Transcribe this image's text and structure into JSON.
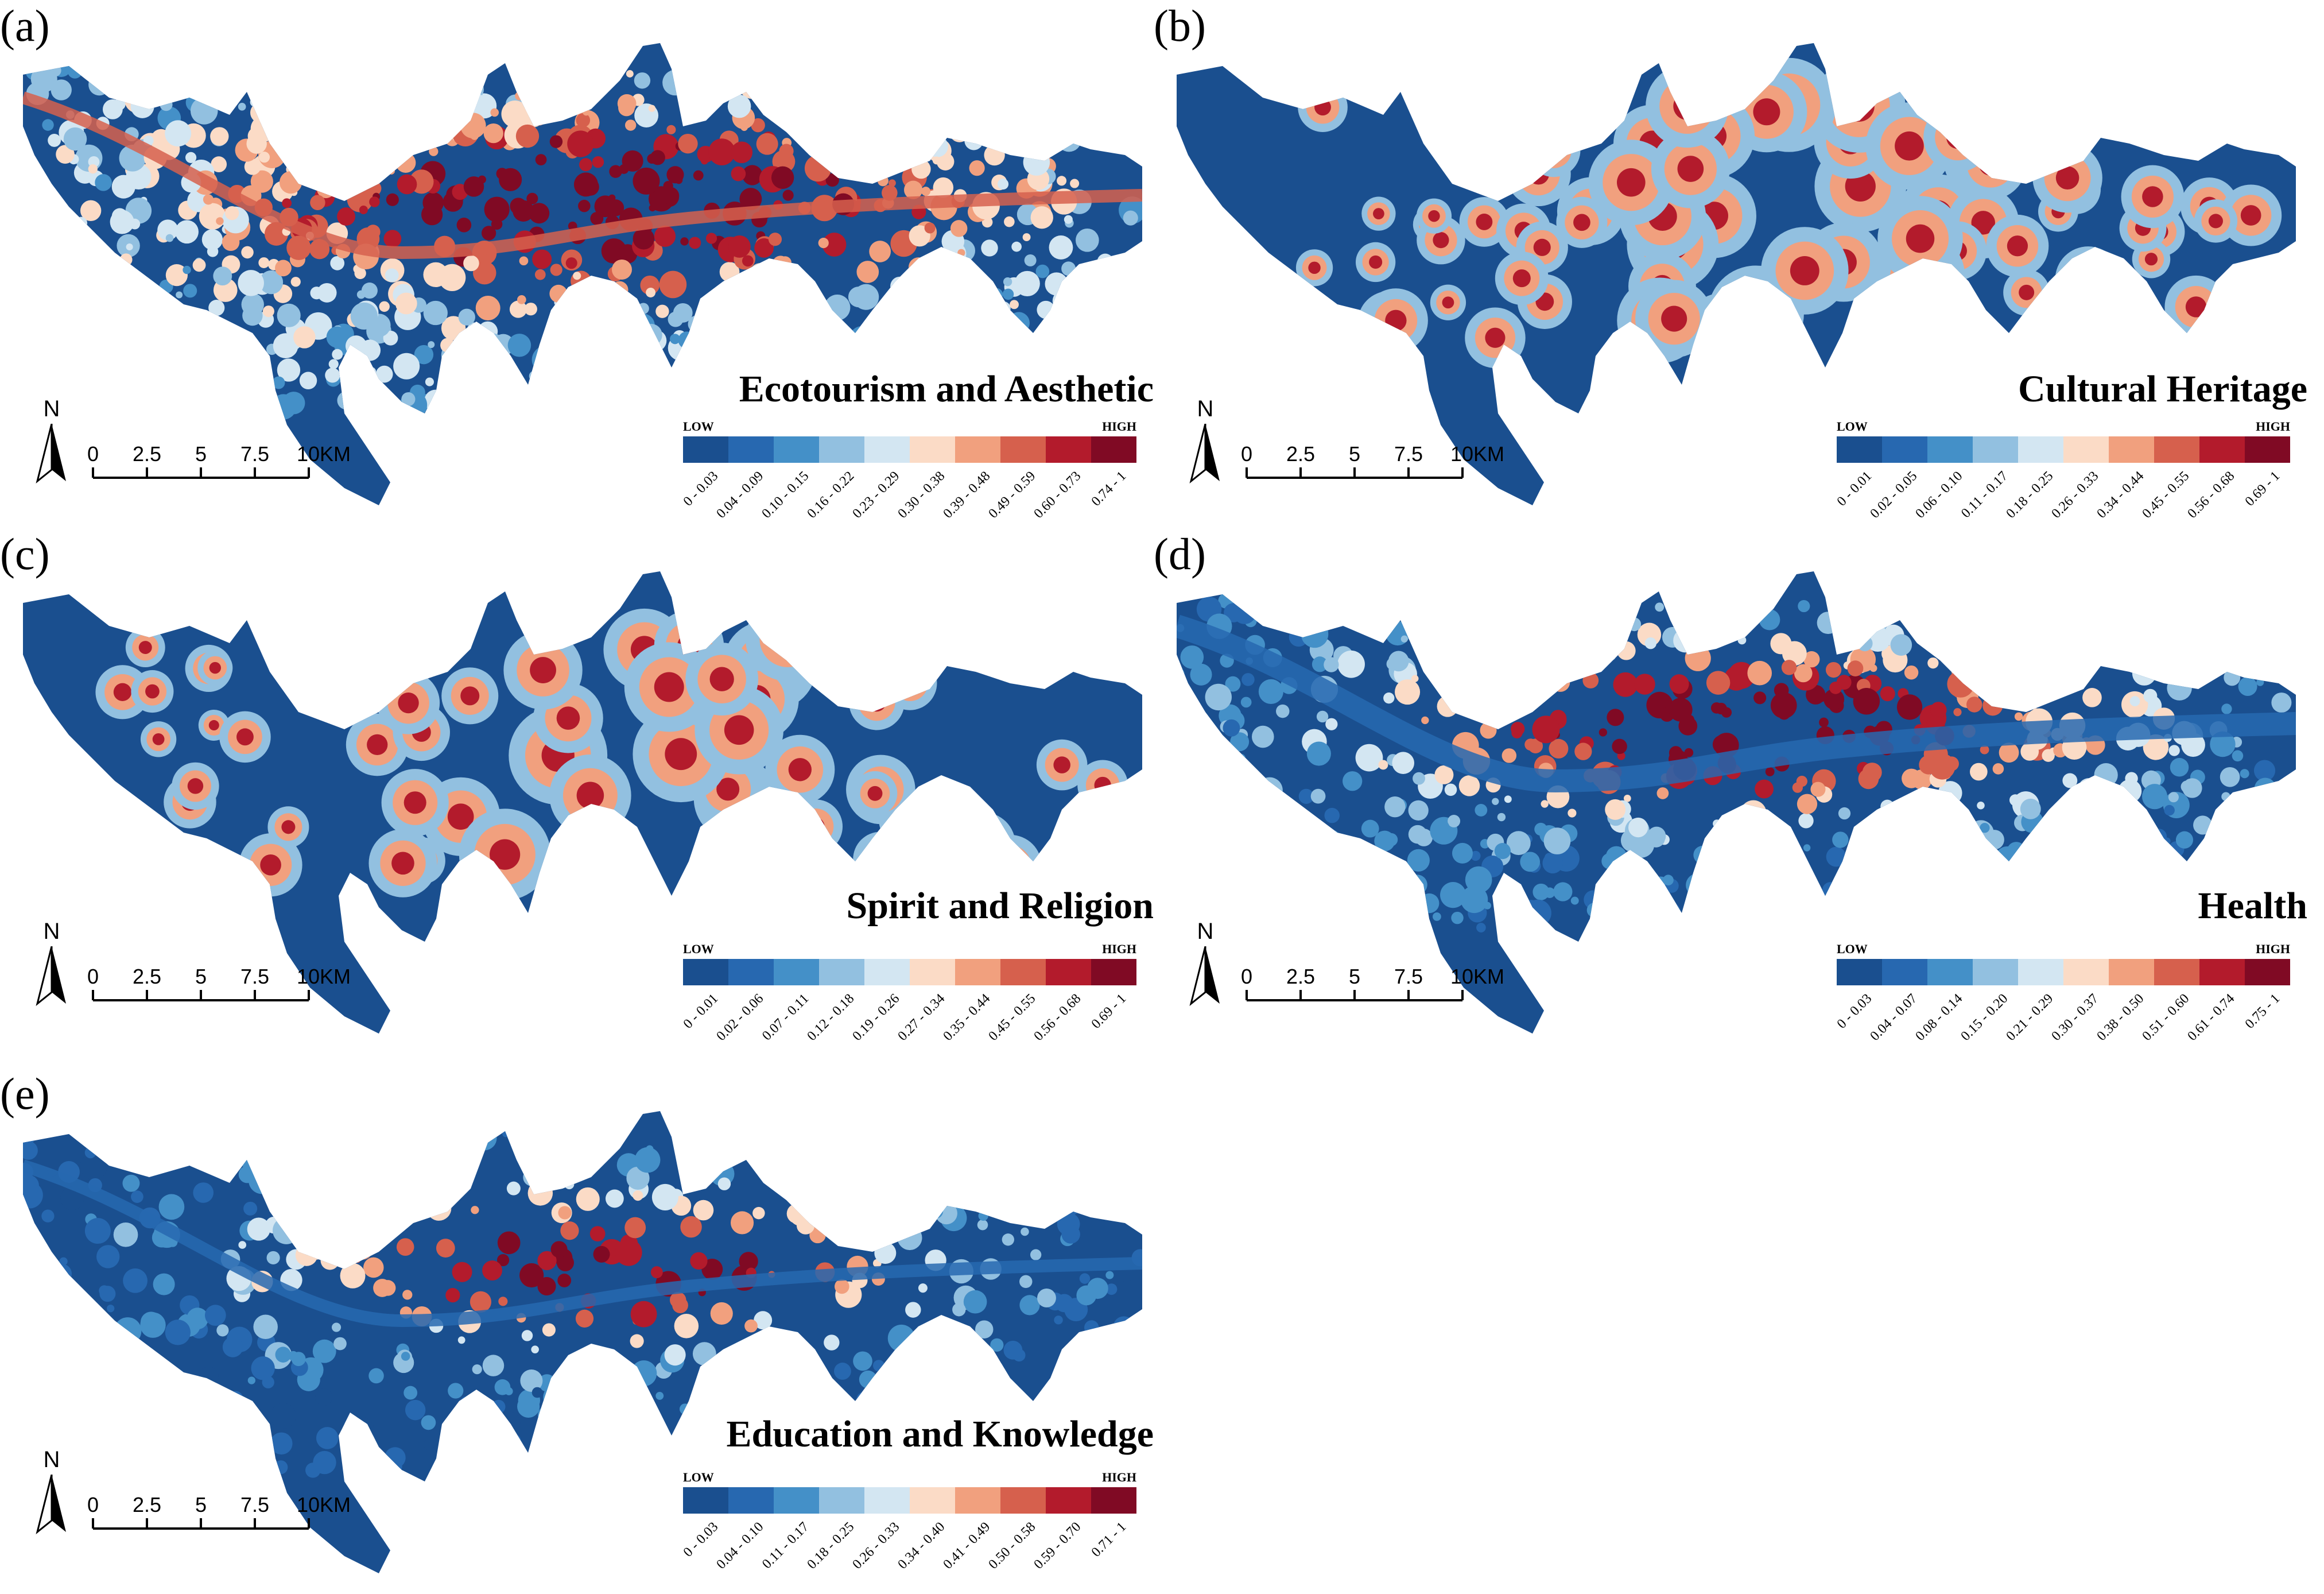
{
  "palette": [
    "#1a4f8f",
    "#2768b0",
    "#4490c8",
    "#92c0e0",
    "#d3e6f2",
    "#fbdbc6",
    "#f1a07e",
    "#d6604d",
    "#b31b2c",
    "#800a24"
  ],
  "legend_low": "LOW",
  "legend_high": "HIGH",
  "north_label": "N",
  "scale_ticks": [
    "0",
    "2.5",
    "5",
    "7.5",
    "10KM"
  ],
  "panels": [
    {
      "letter": "(a)",
      "title": "Ecotourism and Aesthetic",
      "style": "eco",
      "ranges": [
        "0 - 0.03",
        "0.04 - 0.09",
        "0.10 - 0.15",
        "0.16 - 0.22",
        "0.23 - 0.29",
        "0.30 - 0.38",
        "0.39 - 0.48",
        "0.49 - 0.59",
        "0.60 - 0.73",
        "0.74 - 1"
      ]
    },
    {
      "letter": "(b)",
      "title": "Cultural Heritage",
      "style": "heritage",
      "ranges": [
        "0 - 0.01",
        "0.02 - 0.05",
        "0.06 - 0.10",
        "0.11 - 0.17",
        "0.18 - 0.25",
        "0.26 - 0.33",
        "0.34 - 0.44",
        "0.45 - 0.55",
        "0.56 - 0.68",
        "0.69 - 1"
      ]
    },
    {
      "letter": "(c)",
      "title": "Spirit and Religion",
      "style": "spirit",
      "ranges": [
        "0 - 0.01",
        "0.02 - 0.06",
        "0.07 - 0.11",
        "0.12 - 0.18",
        "0.19 - 0.26",
        "0.27 - 0.34",
        "0.35 - 0.44",
        "0.45 - 0.55",
        "0.56 - 0.68",
        "0.69 - 1"
      ]
    },
    {
      "letter": "(d)",
      "title": "Health",
      "style": "health",
      "ranges": [
        "0 - 0.03",
        "0.04 - 0.07",
        "0.08 - 0.14",
        "0.15 - 0.20",
        "0.21 - 0.29",
        "0.30 - 0.37",
        "0.38 - 0.50",
        "0.51 - 0.60",
        "0.61 - 0.74",
        "0.75 - 1"
      ]
    },
    {
      "letter": "(e)",
      "title": "Education and Knowledge",
      "style": "edu",
      "ranges": [
        "0 - 0.03",
        "0.04 - 0.10",
        "0.11 - 0.17",
        "0.18 - 0.25",
        "0.26 - 0.33",
        "0.34 - 0.40",
        "0.41 - 0.49",
        "0.50 - 0.58",
        "0.59 - 0.70",
        "0.71 - 1"
      ]
    }
  ]
}
